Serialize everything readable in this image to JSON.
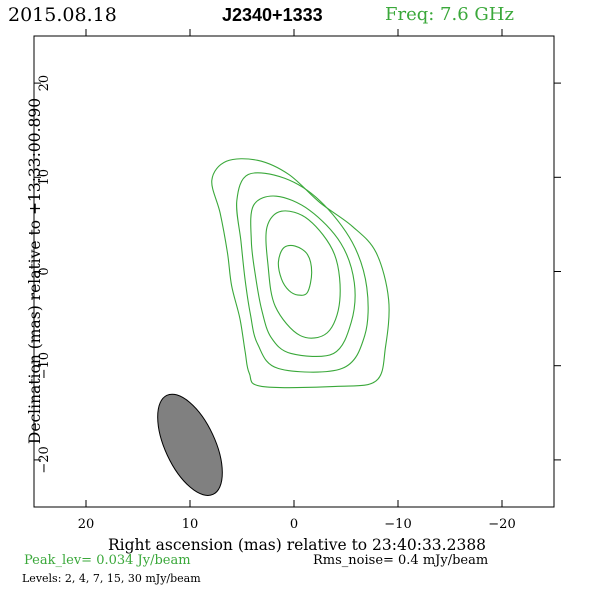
{
  "header": {
    "date": "2015.08.18",
    "source": "J2340+1333",
    "freq": "Freq: 7.6 GHz"
  },
  "footer": {
    "peak": "Peak_lev=  0.034 Jy/beam",
    "rms": "Rms_noise=  0.4 mJy/beam",
    "levels": "Levels:  2,  4,  7,  15,  30 mJy/beam"
  },
  "colors": {
    "contour": "#3aa83a",
    "beam": "#808080",
    "axes": "#000000"
  },
  "chart_data": {
    "type": "contour",
    "title": "J2340+1333",
    "xlabel": "Right ascension (mas) relative to 23:40:33.2388",
    "ylabel": "Declination (mas) relative to +13:33:00.890",
    "xlim": [
      25,
      -25
    ],
    "ylim": [
      -25,
      25
    ],
    "xticks": [
      20,
      10,
      0,
      -10,
      -20
    ],
    "xtick_labels": [
      "20",
      "10",
      "0",
      "−10",
      "−20"
    ],
    "yticks": [
      -20,
      -10,
      0,
      10,
      20
    ],
    "ytick_labels": [
      "−20",
      "−10",
      "0",
      "10",
      "20"
    ],
    "levels_mjy_per_beam": [
      2,
      4,
      7,
      15,
      30
    ],
    "peak_jy_per_beam": 0.034,
    "rms_mjy_per_beam": 0.4,
    "contours": [
      {
        "level": 2,
        "points": [
          [
            3.1,
            -12.2
          ],
          [
            -4.0,
            -12.2
          ],
          [
            -7.9,
            -11.6
          ],
          [
            -8.8,
            -8.0
          ],
          [
            -9.1,
            -3.0
          ],
          [
            -7.9,
            2.0
          ],
          [
            -5.6,
            4.8
          ],
          [
            -2.5,
            7.3
          ],
          [
            0.5,
            10.3
          ],
          [
            3.5,
            11.8
          ],
          [
            6.5,
            11.7
          ],
          [
            7.9,
            9.7
          ],
          [
            7.1,
            6.2
          ],
          [
            6.4,
            2.0
          ],
          [
            6.0,
            -1.5
          ],
          [
            5.2,
            -5.0
          ],
          [
            4.7,
            -8.5
          ],
          [
            4.3,
            -10.8
          ]
        ]
      },
      {
        "level": 4,
        "points": [
          [
            1.5,
            -10.3
          ],
          [
            -4.6,
            -10.3
          ],
          [
            -6.8,
            -6.8
          ],
          [
            -7.0,
            -1.7
          ],
          [
            -5.6,
            3.1
          ],
          [
            -2.5,
            7.5
          ],
          [
            0.9,
            9.9
          ],
          [
            4.4,
            10.3
          ],
          [
            5.5,
            7.5
          ],
          [
            5.1,
            3.2
          ],
          [
            4.7,
            -0.9
          ],
          [
            4.2,
            -4.5
          ],
          [
            3.5,
            -7.7
          ]
        ]
      },
      {
        "level": 7,
        "points": [
          [
            0.3,
            -8.7
          ],
          [
            -3.8,
            -8.7
          ],
          [
            -5.5,
            -5.4
          ],
          [
            -5.8,
            -1.2
          ],
          [
            -4.5,
            3.0
          ],
          [
            -1.5,
            6.5
          ],
          [
            1.7,
            8.0
          ],
          [
            3.9,
            7.0
          ],
          [
            4.1,
            3.2
          ],
          [
            3.7,
            -0.5
          ],
          [
            3.1,
            -4.1
          ],
          [
            2.2,
            -7.0
          ]
        ]
      },
      {
        "level": 15,
        "points": [
          [
            -0.6,
            -6.8
          ],
          [
            -3.2,
            -6.5
          ],
          [
            -4.4,
            -3.1
          ],
          [
            -3.9,
            1.8
          ],
          [
            -1.4,
            5.5
          ],
          [
            1.2,
            6.4
          ],
          [
            2.6,
            4.7
          ],
          [
            2.5,
            0.7
          ],
          [
            1.8,
            -3.7
          ]
        ]
      },
      {
        "level": 30,
        "points": [
          [
            -0.4,
            -2.5
          ],
          [
            -1.3,
            -2.2
          ],
          [
            -1.7,
            -0.1
          ],
          [
            -1.3,
            1.8
          ],
          [
            -0.1,
            2.7
          ],
          [
            1.0,
            2.5
          ],
          [
            1.5,
            1.0
          ],
          [
            1.2,
            -0.8
          ],
          [
            0.5,
            -2.0
          ]
        ]
      }
    ],
    "beam": {
      "center": [
        10.0,
        -18.4
      ],
      "major_mas": 11.6,
      "minor_mas": 4.8,
      "pa_deg": 25
    },
    "grid": false
  }
}
